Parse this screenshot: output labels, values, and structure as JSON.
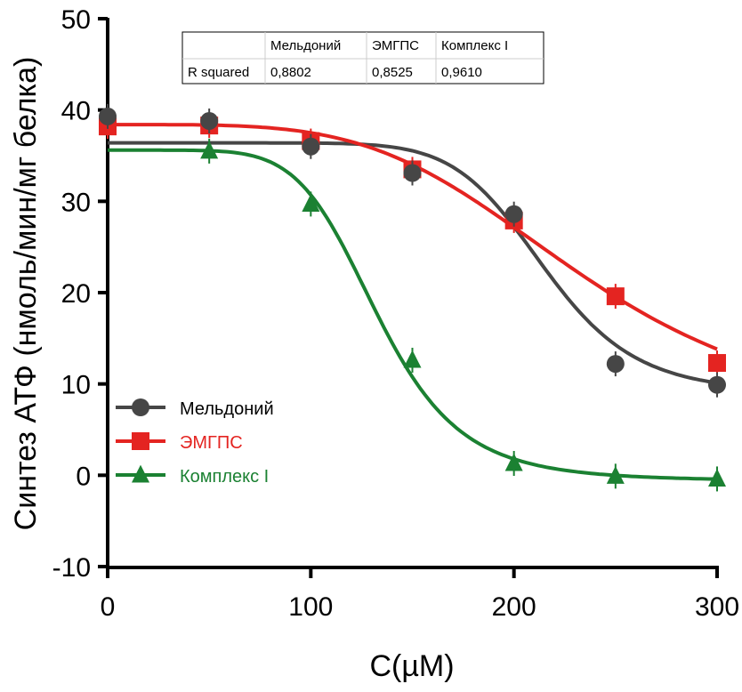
{
  "chart_data": {
    "type": "line",
    "title": "",
    "xlabel": "C(µM)",
    "ylabel": "Синтез АТФ (нмоль/мин/мг белка)",
    "xlim": [
      0,
      300
    ],
    "ylim": [
      -10,
      50
    ],
    "xticks": [
      0,
      100,
      200,
      300
    ],
    "yticks": [
      -10,
      0,
      10,
      20,
      30,
      40,
      50
    ],
    "xtick_labels": [
      "0",
      "100",
      "200",
      "300"
    ],
    "ytick_labels": [
      "-10",
      "0",
      "10",
      "20",
      "30",
      "40",
      "50"
    ],
    "grid": false,
    "legend_position": "lower-left",
    "x": [
      0,
      50,
      100,
      150,
      200,
      250,
      300
    ],
    "series": [
      {
        "name": "Мельдоний",
        "color": "#464646",
        "marker": "circle",
        "values": [
          39.3,
          38.8,
          36.0,
          33.1,
          28.6,
          12.2,
          9.9
        ],
        "fit": {
          "model": "sigmoid",
          "top": 36.4,
          "bottom": 9.0,
          "ec50": 215,
          "hill": 9.5
        }
      },
      {
        "name": "ЭМГПС",
        "color": "#e42421",
        "marker": "square",
        "values": [
          38.2,
          38.3,
          36.6,
          33.5,
          27.9,
          19.6,
          12.3
        ],
        "fit": {
          "model": "sigmoid",
          "top": 38.4,
          "bottom": 5.0,
          "ec50": 235,
          "hill": 4.2
        }
      },
      {
        "name": "Комплекс I",
        "color": "#1b8132",
        "marker": "triangle",
        "values": [
          null,
          35.5,
          29.7,
          12.6,
          1.3,
          -0.1,
          -0.4
        ],
        "fit": {
          "model": "sigmoid",
          "top": 35.6,
          "bottom": -0.6,
          "ec50": 133,
          "hill": 6.5
        }
      }
    ],
    "table": {
      "headers": [
        "",
        "Мельдоний",
        "ЭМГПС",
        "Комплекс I"
      ],
      "rows": [
        [
          "R squared",
          "0,8802",
          "0,8525",
          "0,9610"
        ]
      ]
    }
  }
}
